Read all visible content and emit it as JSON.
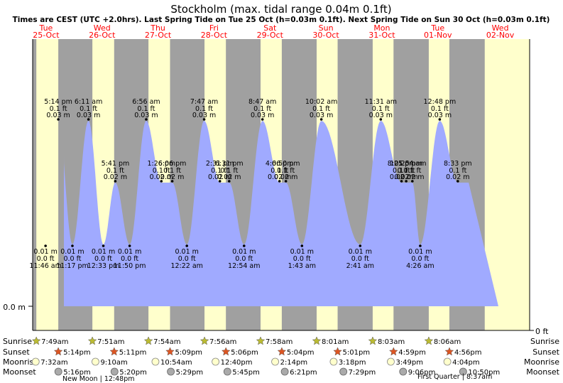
{
  "chart_data": {
    "type": "area",
    "title": "Stockholm (max. tidal range 0.04m 0.1ft)",
    "subtitle": "Times are CEST (UTC +2.0hrs). Last Spring Tide on Tue 25 Oct (h=0.03m 0.1ft). Next Spring Tide on Sun 30 Oct (h=0.03m 0.1ft)",
    "ylabel_left": "0.0 m",
    "ylabel_right": "0 ft",
    "days": [
      {
        "dow": "Tue",
        "date": "25-Oct"
      },
      {
        "dow": "Wed",
        "date": "26-Oct"
      },
      {
        "dow": "Thu",
        "date": "27-Oct"
      },
      {
        "dow": "Fri",
        "date": "28-Oct"
      },
      {
        "dow": "Sat",
        "date": "29-Oct"
      },
      {
        "dow": "Sun",
        "date": "30-Oct"
      },
      {
        "dow": "Mon",
        "date": "31-Oct"
      },
      {
        "dow": "Tue",
        "date": "01-Nov"
      },
      {
        "dow": "Wed",
        "date": "02-Nov"
      }
    ],
    "tides": [
      {
        "day": 0,
        "time": "5:14 pm",
        "ft": "0.1 ft",
        "m": "0.03 m",
        "h": 0.03
      },
      {
        "day": 0,
        "time": "11:46 am",
        "ft": "0.0 ft",
        "m": "0.01 m",
        "h": 0.01
      },
      {
        "day": 0,
        "time": "11:17 pm",
        "ft": "0.0 ft",
        "m": "0.01 m",
        "h": 0.01
      },
      {
        "day": 1,
        "time": "6:11 am",
        "ft": "0.1 ft",
        "m": "0.03 m",
        "h": 0.03
      },
      {
        "day": 1,
        "time": "5:41 pm",
        "ft": "0.1 ft",
        "m": "0.02 m",
        "h": 0.02
      },
      {
        "day": 1,
        "time": "12:33 pm",
        "ft": "0.0 ft",
        "m": "0.01 m",
        "h": 0.01
      },
      {
        "day": 1,
        "time": "11:50 pm",
        "ft": "0.0 ft",
        "m": "0.01 m",
        "h": 0.01
      },
      {
        "day": 2,
        "time": "6:56 am",
        "ft": "0.1 ft",
        "m": "0.03 m",
        "h": 0.03
      },
      {
        "day": 2,
        "time": "6:06 pm",
        "ft": "0.1 ft",
        "m": "0.02 m",
        "h": 0.02
      },
      {
        "day": 2,
        "time": "1:26 pm",
        "ft": "0.1 ft",
        "m": "0.02 m",
        "h": 0.02
      },
      {
        "day": 3,
        "time": "7:47 am",
        "ft": "0.1 ft",
        "m": "0.03 m",
        "h": 0.03
      },
      {
        "day": 3,
        "time": "6:31 pm",
        "ft": "0.1 ft",
        "m": "0.02 m",
        "h": 0.02
      },
      {
        "day": 3,
        "time": "2:31 pm",
        "ft": "0.1 ft",
        "m": "0.02 m",
        "h": 0.02
      },
      {
        "day": 3,
        "time": "12:22 am",
        "ft": "0.0 ft",
        "m": "0.01 m",
        "h": 0.01
      },
      {
        "day": 4,
        "time": "8:47 am",
        "ft": "0.1 ft",
        "m": "0.03 m",
        "h": 0.03
      },
      {
        "day": 4,
        "time": "6:50 pm",
        "ft": "0.1 ft",
        "m": "0.02 m",
        "h": 0.02
      },
      {
        "day": 4,
        "time": "4:06 pm",
        "ft": "0.1 ft",
        "m": "0.02 m",
        "h": 0.02
      },
      {
        "day": 4,
        "time": "12:54 am",
        "ft": "0.0 ft",
        "m": "0.01 m",
        "h": 0.01
      },
      {
        "day": 5,
        "time": "10:02 am",
        "ft": "0.1 ft",
        "m": "0.03 m",
        "h": 0.03
      },
      {
        "day": 5,
        "time": "1:43 am",
        "ft": "0.0 ft",
        "m": "0.01 m",
        "h": 0.01
      },
      {
        "day": 6,
        "time": "11:31 am",
        "ft": "0.1 ft",
        "m": "0.03 m",
        "h": 0.03
      },
      {
        "day": 6,
        "time": "10:25 pm",
        "ft": "0.1 ft",
        "m": "0.02 m",
        "h": 0.02
      },
      {
        "day": 6,
        "time": "8:25 pm",
        "ft": "0.1 ft",
        "m": "0.02 m",
        "h": 0.02
      },
      {
        "day": 6,
        "time": "2:41 am",
        "ft": "0.0 ft",
        "m": "0.01 m",
        "h": 0.01
      },
      {
        "day": 7,
        "time": "12:48 pm",
        "ft": "0.1 ft",
        "m": "0.03 m",
        "h": 0.03
      },
      {
        "day": 7,
        "time": "1:04 am",
        "ft": "0.1 ft",
        "m": "0.02 m",
        "h": 0.02
      },
      {
        "day": 7,
        "time": "8:33 pm",
        "ft": "0.1 ft",
        "m": "0.02 m",
        "h": 0.02
      },
      {
        "day": 7,
        "time": "4:26 am",
        "ft": "0.0 ft",
        "m": "0.01 m",
        "h": 0.01
      }
    ],
    "row_labels": [
      "Sunrise",
      "Sunset",
      "Moonrise",
      "Moonset"
    ],
    "sun_moon": [
      {
        "sunrise": "7:49am",
        "sunset": "5:14pm",
        "moonrise": "7:32am",
        "moonset": "5:16pm"
      },
      {
        "sunrise": "7:51am",
        "sunset": "5:11pm",
        "moonrise": "9:10am",
        "moonset": "5:20pm"
      },
      {
        "sunrise": "7:54am",
        "sunset": "5:09pm",
        "moonrise": "10:54am",
        "moonset": "5:29pm"
      },
      {
        "sunrise": "7:56am",
        "sunset": "5:06pm",
        "moonrise": "12:40pm",
        "moonset": "5:45pm"
      },
      {
        "sunrise": "7:58am",
        "sunset": "5:04pm",
        "moonrise": "2:14pm",
        "moonset": "6:21pm"
      },
      {
        "sunrise": "8:01am",
        "sunset": "5:01pm",
        "moonrise": "3:18pm",
        "moonset": "7:29pm"
      },
      {
        "sunrise": "8:03am",
        "sunset": "4:59pm",
        "moonrise": "3:49pm",
        "moonset": "9:06pm"
      },
      {
        "sunrise": "8:06am",
        "sunset": "4:56pm",
        "moonrise": "4:04pm",
        "moonset": "10:50pm"
      }
    ],
    "moon_phases": [
      {
        "text": "New Moon | 12:48pm",
        "day": 0
      },
      {
        "text": "First Quarter | 8:37am",
        "day": 6
      }
    ],
    "colors": {
      "night": "#a0a0a0",
      "day": "#ffffcc",
      "tide_fill": "#a0aaff",
      "weekday_red": "#ff0000",
      "sun_star": "#bbbb33",
      "sunset_star": "#dd5522",
      "moonrise": "#ffffcc",
      "moonset": "#aaaaaa"
    }
  }
}
